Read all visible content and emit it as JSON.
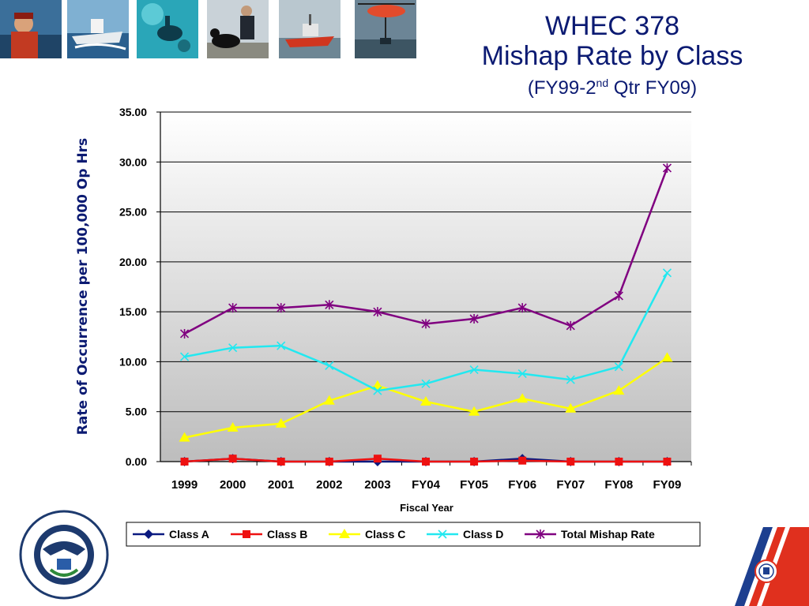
{
  "title": {
    "line1": "WHEC 378",
    "line2": "Mishap Rate by Class",
    "line3_pre": "(FY99-2",
    "line3_sup": "nd",
    "line3_post": " Qtr FY09)"
  },
  "photos": [
    "crew-photo",
    "cutter-photo",
    "diver-photo",
    "dog-handler-photo",
    "small-boat-photo",
    "helicopter-photo"
  ],
  "colors": {
    "class_a": "#0a1a80",
    "class_b": "#ee1111",
    "class_c": "#ffff00",
    "class_d": "#22e8f0",
    "total": "#800080",
    "title": "#0b1a72"
  },
  "chart_data": {
    "type": "line",
    "title": "",
    "xlabel": "Fiscal Year",
    "ylabel": "Rate of Occurrence per 100,000 Op Hrs",
    "ylim": [
      0,
      35
    ],
    "yticks": [
      "0.00",
      "5.00",
      "10.00",
      "15.00",
      "20.00",
      "25.00",
      "30.00",
      "35.00"
    ],
    "grid": "horizontal",
    "legend": "bottom",
    "categories": [
      "1999",
      "2000",
      "2001",
      "2002",
      "2003",
      "FY04",
      "FY05",
      "FY06",
      "FY07",
      "FY08",
      "FY09"
    ],
    "series": [
      {
        "name": "Class A",
        "marker": "diamond",
        "values": [
          0.0,
          0.3,
          0.0,
          0.0,
          0.0,
          0.0,
          0.0,
          0.3,
          0.0,
          0.0,
          0.0
        ]
      },
      {
        "name": "Class B",
        "marker": "square",
        "values": [
          0.0,
          0.3,
          0.0,
          0.0,
          0.3,
          0.0,
          0.0,
          0.1,
          0.0,
          0.0,
          0.0
        ]
      },
      {
        "name": "Class C",
        "marker": "triangle",
        "values": [
          2.4,
          3.4,
          3.8,
          6.1,
          7.6,
          6.0,
          5.0,
          6.3,
          5.3,
          7.1,
          10.4
        ]
      },
      {
        "name": "Class D",
        "marker": "x",
        "values": [
          10.5,
          11.4,
          11.6,
          9.6,
          7.1,
          7.8,
          9.2,
          8.8,
          8.2,
          9.5,
          18.9
        ]
      },
      {
        "name": "Total Mishap Rate",
        "marker": "star",
        "values": [
          12.8,
          15.4,
          15.4,
          15.7,
          15.0,
          13.8,
          14.3,
          15.4,
          13.6,
          16.6,
          29.4
        ]
      }
    ]
  }
}
